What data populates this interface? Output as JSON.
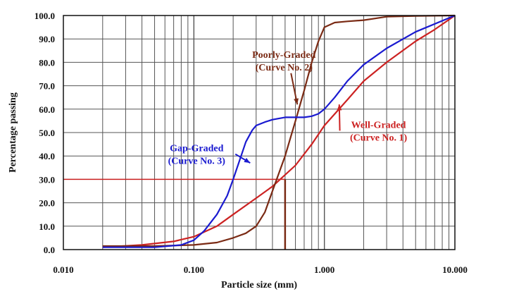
{
  "chart_data": {
    "type": "line",
    "title": "",
    "xlabel": "Particle size (mm)",
    "ylabel": "Percentage passing",
    "x_scale": "log",
    "xlim": [
      0.01,
      10
    ],
    "ylim": [
      0,
      100
    ],
    "grid": true,
    "x_ticks": [
      "0.010",
      "0.100",
      "1.000",
      "10.000"
    ],
    "y_ticks": [
      "0.0",
      "10.0",
      "20.0",
      "30.0",
      "40.0",
      "50.0",
      "60.0",
      "70.0",
      "80.0",
      "90.0",
      "100.0"
    ],
    "series": [
      {
        "name": "Well-Graded (Curve No. 1)",
        "color": "#cc2222",
        "x": [
          0.02,
          0.04,
          0.07,
          0.1,
          0.15,
          0.2,
          0.3,
          0.4,
          0.6,
          0.8,
          1.0,
          1.5,
          2.0,
          3.0,
          5.0,
          7.0,
          10.0
        ],
        "y": [
          1,
          2,
          3.5,
          5.5,
          10,
          15,
          22,
          27,
          36,
          45,
          53,
          64,
          72,
          80,
          89,
          94,
          100
        ]
      },
      {
        "name": "Poorly-Graded (Curve No. 2)",
        "color": "#7a2a14",
        "x": [
          0.02,
          0.05,
          0.1,
          0.15,
          0.2,
          0.25,
          0.3,
          0.35,
          0.4,
          0.5,
          0.6,
          0.7,
          0.8,
          0.9,
          1.0,
          1.2,
          1.5,
          2.0,
          3.0,
          5.0,
          10.0
        ],
        "y": [
          1.5,
          1.5,
          2,
          3,
          5,
          7,
          10,
          16,
          25,
          40,
          55,
          68,
          80,
          89,
          95,
          97,
          97.5,
          98,
          99.5,
          99.8,
          100
        ]
      },
      {
        "name": "Gap-Graded (Curve No. 3)",
        "color": "#1a1ad0",
        "x": [
          0.02,
          0.05,
          0.08,
          0.1,
          0.12,
          0.15,
          0.18,
          0.2,
          0.23,
          0.25,
          0.28,
          0.3,
          0.35,
          0.4,
          0.5,
          0.6,
          0.7,
          0.8,
          0.9,
          1.0,
          1.2,
          1.5,
          2.0,
          3.0,
          5.0,
          10.0
        ],
        "y": [
          1,
          1,
          2,
          4,
          8,
          15,
          23,
          30,
          40,
          46,
          51,
          53,
          54.5,
          55.5,
          56.5,
          56.5,
          56.5,
          57,
          58,
          60,
          65,
          72,
          79,
          86,
          93,
          100
        ]
      }
    ],
    "reference_lines": [
      {
        "orientation": "horizontal",
        "y": 30,
        "x_from": 0.01,
        "x_to": 0.5,
        "color": "#cc2222"
      },
      {
        "orientation": "vertical",
        "x": 0.5,
        "y_from": 0,
        "y_to": 30,
        "color": "#7a2a14"
      }
    ],
    "annotations": [
      {
        "lines": [
          "Poorly-Graded",
          "(Curve No. 2)"
        ],
        "color": "#7a2a14",
        "anchor_x": 0.49,
        "anchor_y": 82,
        "arrow_to_x": 0.62,
        "arrow_to_y": 62
      },
      {
        "lines": [
          "Well-Graded",
          "(Curve No. 1)"
        ],
        "color": "#cc2222",
        "anchor_x": 2.6,
        "anchor_y": 52,
        "arrow_to_x": 1.3,
        "arrow_to_y": 62
      },
      {
        "lines": [
          "Gap-Graded",
          "(Curve No. 3)"
        ],
        "color": "#1a1ad0",
        "anchor_x": 0.105,
        "anchor_y": 42,
        "arrow_to_x": 0.27,
        "arrow_to_y": 37
      }
    ]
  }
}
